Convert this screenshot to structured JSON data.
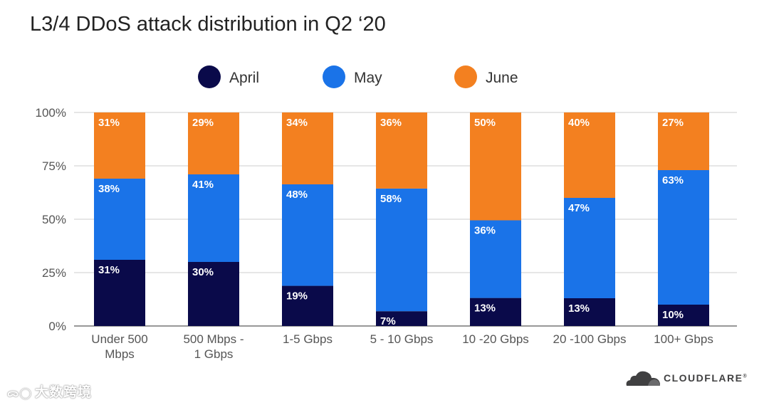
{
  "chart_data": {
    "type": "bar",
    "stacked": true,
    "title": "L3/4 DDoS attack distribution in Q2 ‘20",
    "xlabel": "",
    "ylabel": "",
    "ylim": [
      0,
      100
    ],
    "yticks": [
      0,
      25,
      50,
      75,
      100
    ],
    "ytick_labels": [
      "0%",
      "25%",
      "50%",
      "75%",
      "100%"
    ],
    "grid": true,
    "legend_position": "top",
    "categories": [
      [
        "Under 500",
        "Mbps"
      ],
      [
        "500 Mbps -",
        "1 Gbps"
      ],
      [
        "1-5 Gbps"
      ],
      [
        "5 - 10 Gbps"
      ],
      [
        "10 -20 Gbps"
      ],
      [
        "20 -100 Gbps"
      ],
      [
        "100+ Gbps"
      ]
    ],
    "series": [
      {
        "name": "April",
        "color": "#0a0a4a",
        "values": [
          31,
          30,
          19,
          7,
          13,
          13,
          10
        ],
        "labels": [
          "31%",
          "30%",
          "19%",
          "7%",
          "13%",
          "13%",
          "10%"
        ]
      },
      {
        "name": "May",
        "color": "#1a73e8",
        "values": [
          38,
          41,
          48,
          58,
          36,
          47,
          63
        ],
        "labels": [
          "38%",
          "41%",
          "48%",
          "58%",
          "36%",
          "47%",
          "63%"
        ]
      },
      {
        "name": "June",
        "color": "#f38020",
        "values": [
          31,
          29,
          34,
          36,
          50,
          40,
          27
        ],
        "labels": [
          "31%",
          "29%",
          "34%",
          "36%",
          "50%",
          "40%",
          "27%"
        ]
      }
    ]
  },
  "watermark": {
    "text": "大数跨境",
    "icon": "brand-mark-icon"
  },
  "brand": {
    "name": "CLOUDFLARE",
    "registered": "®",
    "icon": "cloud-icon"
  }
}
